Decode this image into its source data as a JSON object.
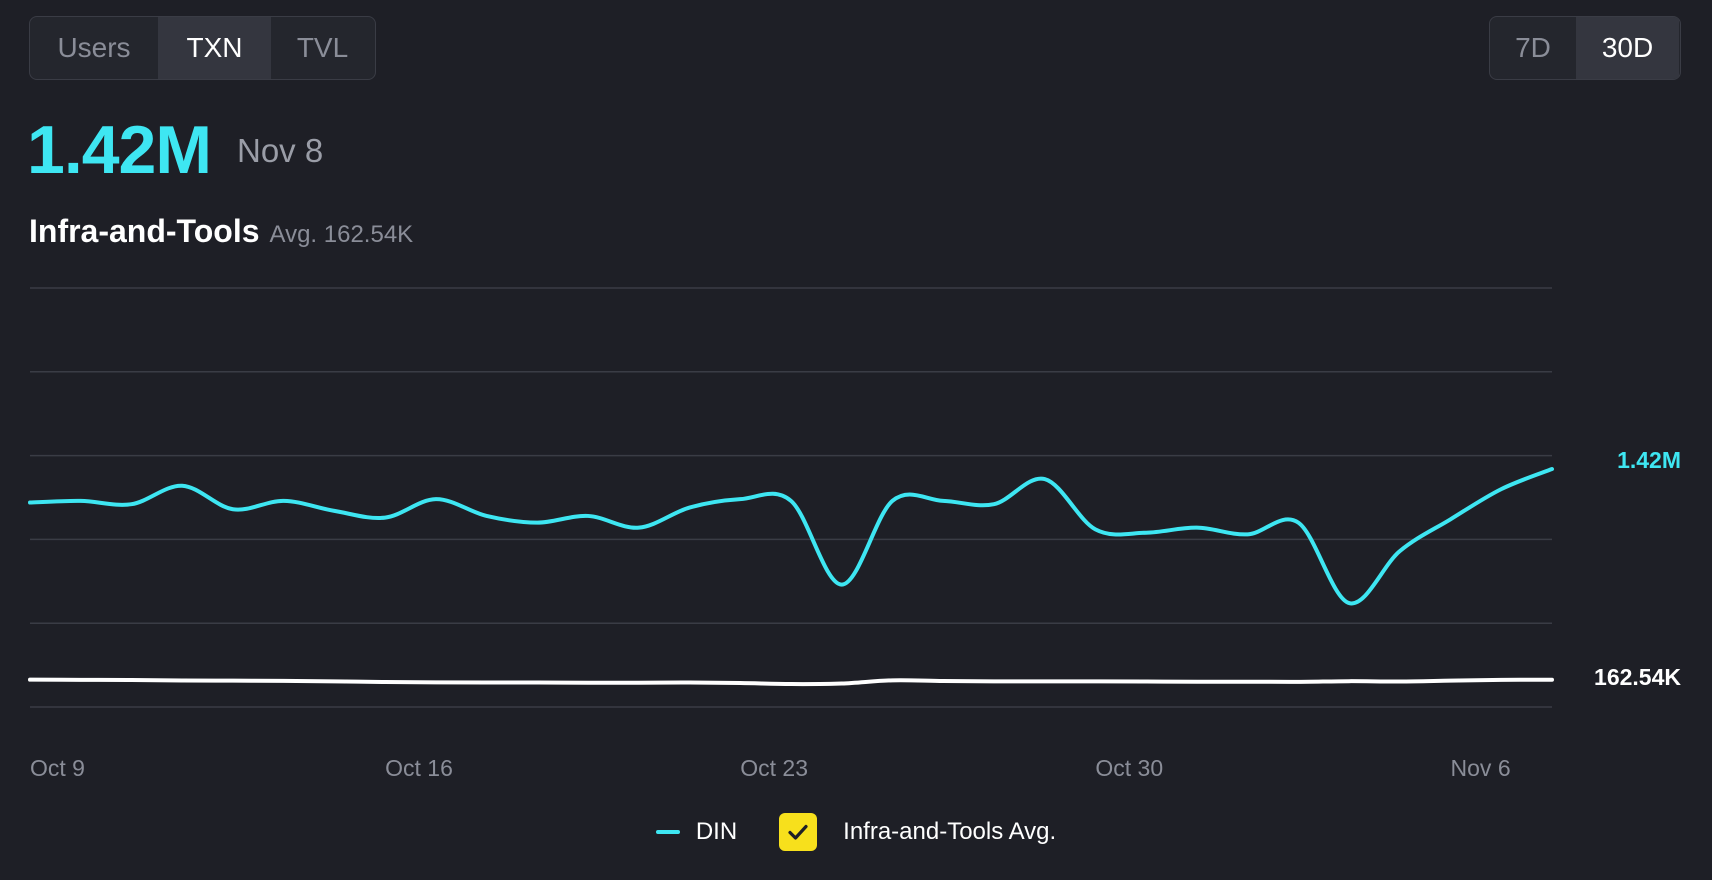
{
  "metric_tabs": [
    "Users",
    "TXN",
    "TVL"
  ],
  "metric_active": "TXN",
  "range_tabs": [
    "7D",
    "30D"
  ],
  "range_active": "30D",
  "headline": {
    "value": "1.42M",
    "date": "Nov 8"
  },
  "subtitle": {
    "name": "Infra-and-Tools",
    "avg": "Avg. 162.54K"
  },
  "legend": {
    "series_label": "DIN",
    "avg_label": "Infra-and-Tools Avg.",
    "avg_checked": true
  },
  "colors": {
    "accent": "#3ee6f2",
    "avg_line": "#ffffff",
    "checkbox": "#f7e01c"
  },
  "chart_data": {
    "type": "line",
    "x_tick_labels": [
      "Oct 9",
      "Oct 16",
      "Oct 23",
      "Oct 30",
      "Nov 6"
    ],
    "x": [
      "Oct 9",
      "Oct 10",
      "Oct 11",
      "Oct 12",
      "Oct 13",
      "Oct 14",
      "Oct 15",
      "Oct 16",
      "Oct 17",
      "Oct 18",
      "Oct 19",
      "Oct 20",
      "Oct 21",
      "Oct 22",
      "Oct 23",
      "Oct 24",
      "Oct 25",
      "Oct 26",
      "Oct 27",
      "Oct 28",
      "Oct 29",
      "Oct 30",
      "Oct 31",
      "Nov 1",
      "Nov 2",
      "Nov 3",
      "Nov 4",
      "Nov 5",
      "Nov 6",
      "Nov 7",
      "Nov 8"
    ],
    "series": [
      {
        "name": "DIN",
        "values": [
          1.22,
          1.23,
          1.21,
          1.32,
          1.18,
          1.23,
          1.17,
          1.13,
          1.24,
          1.14,
          1.1,
          1.14,
          1.07,
          1.19,
          1.24,
          1.23,
          0.73,
          1.23,
          1.23,
          1.21,
          1.36,
          1.06,
          1.04,
          1.07,
          1.03,
          1.1,
          0.62,
          0.93,
          1.12,
          1.3,
          1.42
        ]
      },
      {
        "name": "Infra-and-Tools Avg.",
        "values": [
          0.163,
          0.162,
          0.161,
          0.158,
          0.157,
          0.156,
          0.153,
          0.149,
          0.147,
          0.146,
          0.146,
          0.145,
          0.145,
          0.146,
          0.143,
          0.137,
          0.14,
          0.159,
          0.155,
          0.153,
          0.153,
          0.153,
          0.152,
          0.151,
          0.151,
          0.15,
          0.154,
          0.152,
          0.157,
          0.162,
          0.16254
        ]
      }
    ],
    "end_labels": [
      "1.42M",
      "162.54K"
    ],
    "ylim": [
      0,
      2.5
    ],
    "grid": true
  }
}
